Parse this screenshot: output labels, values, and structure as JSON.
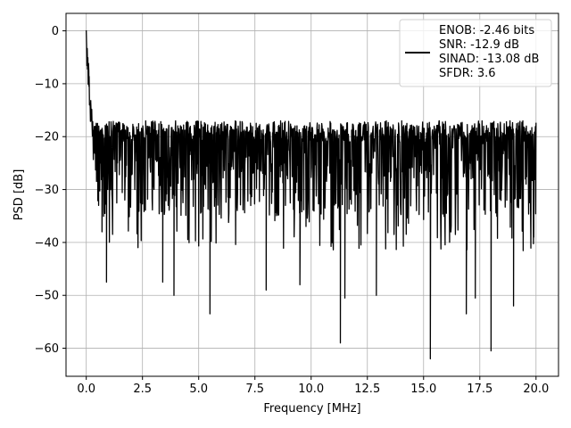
{
  "chart_data": {
    "type": "line",
    "title": "",
    "xlabel": "Frequency [MHz]",
    "ylabel": "PSD [dB]",
    "xlim": [
      -0.9,
      21.0
    ],
    "ylim": [
      -65.3,
      3.3
    ],
    "xticks": [
      0.0,
      2.5,
      5.0,
      7.5,
      10.0,
      12.5,
      15.0,
      17.5,
      20.0
    ],
    "xtick_labels": [
      "0.0",
      "2.5",
      "5.0",
      "7.5",
      "10.0",
      "12.5",
      "15.0",
      "17.5",
      "20.0"
    ],
    "yticks": [
      0,
      -10,
      -20,
      -30,
      -40,
      -50,
      -60
    ],
    "ytick_labels": [
      "0",
      "−10",
      "−20",
      "−30",
      "−40",
      "−50",
      "−60"
    ],
    "grid": true,
    "legend_position": "top-right",
    "series": [
      {
        "name": "ENOB: -2.46 bits\nSNR: -12.9 dB\nSINAD: -13.08 dB\nSFDR: 3.6",
        "color": "#000000",
        "x_range": [
          0.0,
          20.0
        ],
        "noise_floor_db": [
          -32.0,
          -17.0
        ],
        "notable_points": [
          {
            "x": 0.0,
            "y": 0.0
          },
          {
            "x": 0.06,
            "y": -7.0
          },
          {
            "x": 0.12,
            "y": -10.5
          },
          {
            "x": 0.2,
            "y": -13.5
          },
          {
            "x": 0.55,
            "y": -33.0
          },
          {
            "x": 0.7,
            "y": -38.0
          },
          {
            "x": 0.9,
            "y": -47.5
          },
          {
            "x": 3.4,
            "y": -47.5
          },
          {
            "x": 3.9,
            "y": -50.0
          },
          {
            "x": 5.5,
            "y": -53.5
          },
          {
            "x": 8.0,
            "y": -49.0
          },
          {
            "x": 9.5,
            "y": -48.0
          },
          {
            "x": 11.3,
            "y": -59.0
          },
          {
            "x": 11.5,
            "y": -50.5
          },
          {
            "x": 12.9,
            "y": -50.0
          },
          {
            "x": 15.3,
            "y": -62.0
          },
          {
            "x": 16.9,
            "y": -53.5
          },
          {
            "x": 17.3,
            "y": -50.5
          },
          {
            "x": 18.0,
            "y": -60.5
          },
          {
            "x": 19.0,
            "y": -52.0
          },
          {
            "x": 19.9,
            "y": -39.0
          }
        ]
      }
    ],
    "legend_lines": [
      "ENOB: -2.46 bits",
      "SNR: -12.9 dB",
      "SINAD: -13.08 dB",
      "SFDR: 3.6"
    ]
  }
}
